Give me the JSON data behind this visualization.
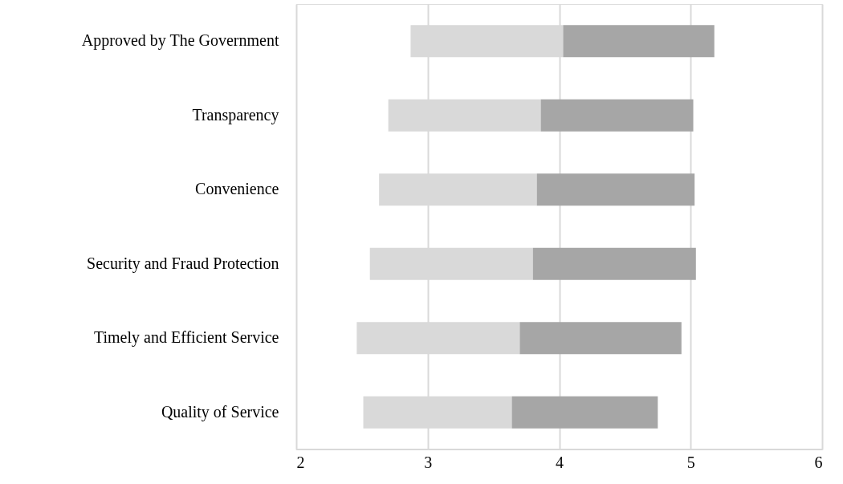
{
  "chart_data": {
    "type": "bar",
    "orientation": "horizontal",
    "categories": [
      "Approved by The Government",
      "Transparency",
      "Convenience",
      "Security and Fraud Protection",
      "Timely and Efficient Service",
      "Quality of Service"
    ],
    "series": [
      {
        "color": "#d9d9d9",
        "base": [
          2.87,
          2.7,
          2.63,
          2.56,
          2.46,
          2.51
        ],
        "values": [
          1.16,
          1.16,
          1.2,
          1.24,
          1.24,
          1.13
        ]
      },
      {
        "color": "#a6a6a6",
        "base": [
          4.03,
          3.86,
          3.83,
          3.8,
          3.7,
          3.64
        ],
        "values": [
          1.15,
          1.16,
          1.2,
          1.24,
          1.23,
          1.11
        ]
      }
    ],
    "xlim": [
      2,
      6
    ],
    "xticks": [
      2,
      3,
      4,
      5,
      6
    ],
    "grid": "x"
  }
}
